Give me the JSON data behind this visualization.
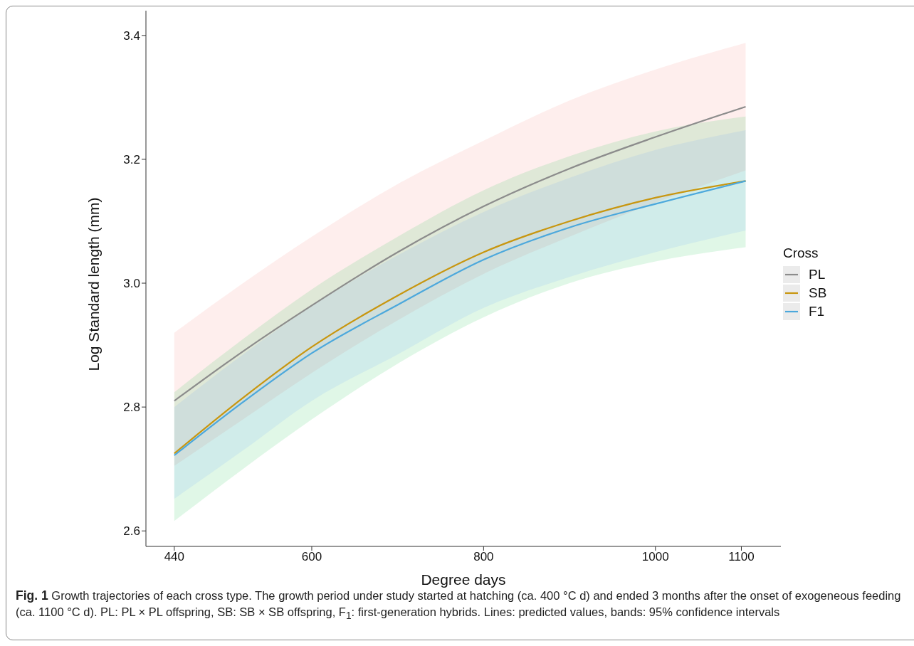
{
  "chart_data": {
    "type": "line",
    "xlabel": "Degree days",
    "ylabel": "Log Standard length (mm)",
    "legend_title": "Cross",
    "legend": "right",
    "grid": false,
    "x": [
      440,
      520,
      600,
      700,
      800,
      900,
      1000,
      1105
    ],
    "xlim": [
      407,
      1146
    ],
    "xticks": [
      440,
      600,
      800,
      1000,
      1100
    ],
    "ylim": [
      2.575,
      3.44
    ],
    "yticks": [
      2.6,
      2.8,
      {
        "value": 3,
        "label": "3.0"
      },
      3.2,
      3.4
    ],
    "series": [
      {
        "name": "PL",
        "color": "#8c8c8c",
        "values": [
          2.81,
          2.89,
          2.964,
          3.05,
          3.124,
          3.185,
          3.236,
          3.285
        ],
        "lower": [
          2.705,
          2.78,
          2.855,
          2.94,
          3.015,
          3.075,
          3.13,
          3.182
        ],
        "upper": [
          2.92,
          3.0,
          3.075,
          3.16,
          3.23,
          3.295,
          3.345,
          3.388
        ]
      },
      {
        "name": "SB",
        "color": "#c8960f",
        "values": [
          2.725,
          2.815,
          2.897,
          2.98,
          3.05,
          3.1,
          3.138,
          3.165
        ],
        "lower": [
          2.616,
          2.7,
          2.78,
          2.87,
          2.945,
          3.0,
          3.035,
          3.058
        ],
        "upper": [
          2.824,
          2.91,
          2.99,
          3.075,
          3.15,
          3.205,
          3.245,
          3.269
        ]
      },
      {
        "name": "F1",
        "color": "#4ca8dc",
        "values": [
          2.722,
          2.808,
          2.887,
          2.965,
          3.038,
          3.09,
          3.128,
          3.165
        ],
        "lower": [
          2.652,
          2.73,
          2.81,
          2.885,
          2.96,
          3.01,
          3.05,
          3.085
        ],
        "upper": [
          2.8,
          2.885,
          2.963,
          3.045,
          3.115,
          3.17,
          3.215,
          3.247
        ]
      }
    ],
    "annotations": [
      "Fig. 1",
      "Growth trajectories of each cross type. The growth period under study started at hatching (ca. 400 °C d) and ended 3 months after the onset of exogeneous feeding (ca. 1100 °C d). PL: PL × PL offspring, SB: SB × SB offspring, F$_{1}$: first-generation hybrids. Lines: predicted values, bands: 95% confidence intervals"
    ]
  }
}
